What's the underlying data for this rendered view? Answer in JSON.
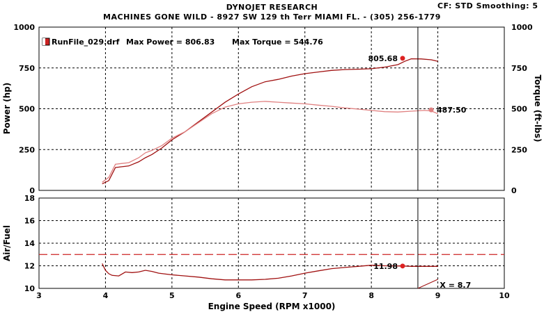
{
  "header": {
    "title": "DYNOJET RESEARCH",
    "subtitle": "MACHINES GONE WILD - 8927 SW 129 th Terr MIAMI FL. - (305) 256-1779",
    "settings": "CF: STD  Smoothing: 5"
  },
  "colors": {
    "power": "#a01010",
    "torque": "#e08080",
    "afr_target": "#cc2222",
    "cursor": "#000000",
    "grid": "#000000"
  },
  "chart_data": [
    {
      "type": "line",
      "legend": {
        "file": "RunFile_029.drf",
        "max_power_label": "Max Power = 806.83",
        "max_torque_label": "Max Torque = 544.76"
      },
      "xlim": [
        3,
        10
      ],
      "ylim_left": [
        0,
        1000
      ],
      "ylim_right": [
        0,
        1000
      ],
      "ylabel_left": "Power (hp)",
      "ylabel_right": "Torque (ft-lbs)",
      "yticks": [
        "0",
        "250",
        "500",
        "750",
        "1000"
      ],
      "grid": true,
      "cursor_x": 8.7,
      "series": [
        {
          "key": "power",
          "x": [
            3.95,
            4.05,
            4.15,
            4.25,
            4.35,
            4.5,
            4.6,
            4.7,
            4.85,
            5.0,
            5.2,
            5.4,
            5.6,
            5.8,
            6.0,
            6.2,
            6.4,
            6.6,
            6.8,
            7.0,
            7.2,
            7.4,
            7.6,
            7.8,
            8.0,
            8.2,
            8.4,
            8.5,
            8.6,
            8.75,
            8.9,
            9.0
          ],
          "y": [
            40,
            60,
            140,
            145,
            150,
            175,
            200,
            220,
            260,
            310,
            360,
            420,
            480,
            540,
            590,
            635,
            665,
            680,
            700,
            715,
            725,
            735,
            740,
            742,
            745,
            755,
            770,
            790,
            806,
            805,
            800,
            790
          ]
        },
        {
          "key": "torque",
          "x": [
            3.95,
            4.05,
            4.15,
            4.25,
            4.35,
            4.5,
            4.6,
            4.7,
            4.85,
            5.0,
            5.2,
            5.4,
            5.6,
            5.8,
            6.0,
            6.2,
            6.4,
            6.6,
            6.8,
            7.0,
            7.2,
            7.4,
            7.6,
            7.8,
            8.0,
            8.2,
            8.4,
            8.6,
            8.8,
            8.9,
            9.0
          ],
          "y": [
            50,
            80,
            160,
            165,
            170,
            200,
            230,
            245,
            275,
            320,
            360,
            415,
            470,
            510,
            530,
            540,
            545,
            540,
            535,
            530,
            522,
            515,
            505,
            498,
            490,
            482,
            480,
            485,
            490,
            487,
            470
          ]
        }
      ],
      "annotations": [
        {
          "text": "805.68",
          "x": 8.47,
          "y": 809,
          "series": "power"
        },
        {
          "text": "487.50",
          "x": 8.9,
          "y": 493,
          "series": "torque"
        }
      ]
    },
    {
      "type": "line",
      "xlim": [
        3,
        10
      ],
      "ylim": [
        10,
        18
      ],
      "ylabel": "Air/Fuel",
      "xlabel": "Engine Speed (RPM x1000)",
      "yticks": [
        "10",
        "12",
        "14",
        "16",
        "18"
      ],
      "xticks": [
        "3",
        "4",
        "5",
        "6",
        "7",
        "8",
        "9",
        "10"
      ],
      "grid": true,
      "target_afr": 13.0,
      "cursor_x": 8.7,
      "series": [
        {
          "key": "afr",
          "x": [
            3.95,
            4.0,
            4.05,
            4.1,
            4.2,
            4.3,
            4.4,
            4.5,
            4.6,
            4.7,
            4.8,
            5.0,
            5.2,
            5.4,
            5.6,
            5.8,
            6.0,
            6.2,
            6.4,
            6.6,
            6.8,
            7.0,
            7.2,
            7.4,
            7.6,
            7.8,
            8.0,
            8.2,
            8.47,
            8.6,
            8.8,
            9.0
          ],
          "y": [
            12.2,
            11.6,
            11.3,
            11.15,
            11.1,
            11.45,
            11.4,
            11.45,
            11.6,
            11.5,
            11.35,
            11.2,
            11.1,
            11.0,
            10.85,
            10.75,
            10.75,
            10.75,
            10.8,
            10.9,
            11.1,
            11.35,
            11.55,
            11.75,
            11.85,
            11.95,
            12.05,
            12.0,
            11.98,
            11.95,
            11.95,
            11.95
          ]
        }
      ],
      "annotations": [
        {
          "text": "11.98",
          "x": 8.47,
          "y": 11.98
        },
        {
          "text": "X = 8.7",
          "x": 9.03,
          "y": 10.3
        }
      ]
    }
  ]
}
